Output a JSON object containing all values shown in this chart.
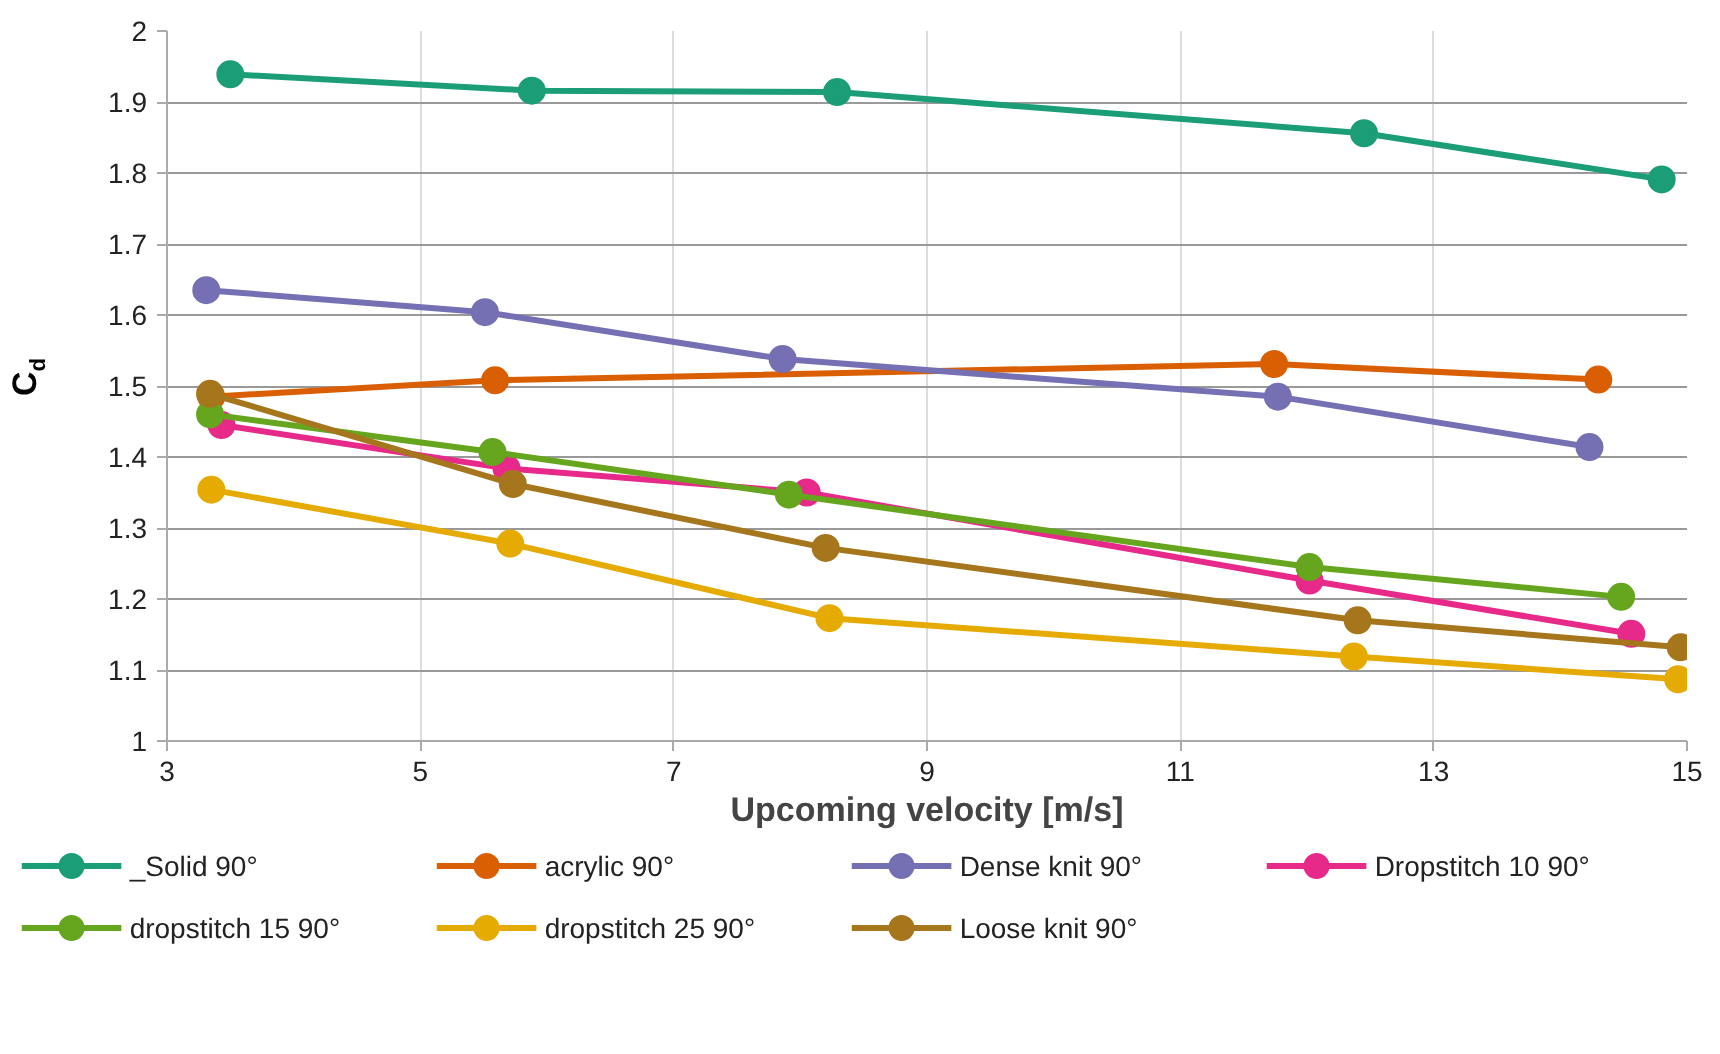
{
  "chart_data": {
    "type": "line",
    "xlabel": "Upcoming velocity [m/s]",
    "ylabel": "C$_{d}$",
    "xlim": [
      3,
      15
    ],
    "xticks": [
      3,
      5,
      7,
      9,
      11,
      13,
      15
    ],
    "ylim": [
      1,
      2
    ],
    "yticks": [
      1,
      1.1,
      1.2,
      1.3,
      1.4,
      1.5,
      1.6,
      1.7,
      1.8,
      1.9,
      2
    ],
    "grid": true,
    "legend": "bottom",
    "marker": "circle",
    "line_style": "solid",
    "series": [
      {
        "name": "_Solid 90°",
        "color": "#1b9e77",
        "x": [
          3.5,
          5.88,
          8.29,
          12.45,
          14.8
        ],
        "values": [
          1.939,
          1.916,
          1.914,
          1.856,
          1.791
        ]
      },
      {
        "name": "acrylic 90°",
        "color": "#d95f02",
        "x": [
          3.35,
          5.59,
          11.74,
          14.3
        ],
        "values": [
          1.485,
          1.508,
          1.531,
          1.509
        ]
      },
      {
        "name": "Dense knit 90°",
        "color": "#7570b3",
        "x": [
          3.31,
          5.51,
          7.86,
          11.77,
          14.23
        ],
        "values": [
          1.635,
          1.604,
          1.538,
          1.485,
          1.414
        ]
      },
      {
        "name": "Dropstitch 10 90°",
        "color": "#e7298a",
        "x": [
          3.43,
          5.68,
          8.05,
          12.02,
          14.56
        ],
        "values": [
          1.445,
          1.384,
          1.35,
          1.226,
          1.151
        ]
      },
      {
        "name": "dropstitch 15 90°",
        "color": "#66a61e",
        "x": [
          3.34,
          5.57,
          7.91,
          12.02,
          14.48
        ],
        "values": [
          1.46,
          1.407,
          1.347,
          1.245,
          1.203
        ]
      },
      {
        "name": "dropstitch 25 90°",
        "color": "#e6ab02",
        "x": [
          3.35,
          5.71,
          8.23,
          12.37,
          14.93
        ],
        "values": [
          1.354,
          1.278,
          1.173,
          1.119,
          1.087
        ]
      },
      {
        "name": "Loose knit 90°",
        "color": "#a6761d",
        "x": [
          3.34,
          5.73,
          8.2,
          12.4,
          14.95
        ],
        "values": [
          1.489,
          1.362,
          1.272,
          1.17,
          1.132
        ]
      }
    ]
  }
}
